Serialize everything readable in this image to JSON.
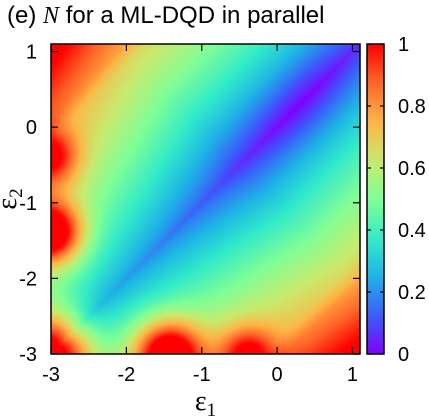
{
  "title": {
    "prefix": "(e)",
    "symbol": "N",
    "rest": "for a ML-DQD in parallel"
  },
  "chart_data": {
    "type": "heatmap",
    "xlabel": "ε",
    "xlabel_sub": "1",
    "ylabel": "ε",
    "ylabel_sub": "2",
    "xlim": [
      -3,
      1.1
    ],
    "ylim": [
      -3,
      1.1
    ],
    "x_ticks": [
      "-3",
      "-2",
      "-1",
      "0",
      "1"
    ],
    "x_tick_values": [
      -3,
      -2,
      -1,
      0,
      1
    ],
    "y_ticks": [
      "1",
      "0",
      "-1",
      "-2",
      "-3"
    ],
    "y_tick_values": [
      1,
      0,
      -1,
      -2,
      -3
    ],
    "colorbar": {
      "range": [
        0,
        1
      ],
      "ticks": [
        "1",
        "0.8",
        "0.6",
        "0.4",
        "0.2",
        "0"
      ],
      "tick_values": [
        1,
        0.8,
        0.6,
        0.4,
        0.2,
        0
      ],
      "colormap": "rainbow"
    },
    "features": {
      "diagonal_valley_min": 0.05,
      "far_corner_max": 1.0,
      "bright_spot_values": [
        1.0,
        1.0,
        0.95
      ]
    },
    "grid": false,
    "legend": "colorbar-right"
  }
}
